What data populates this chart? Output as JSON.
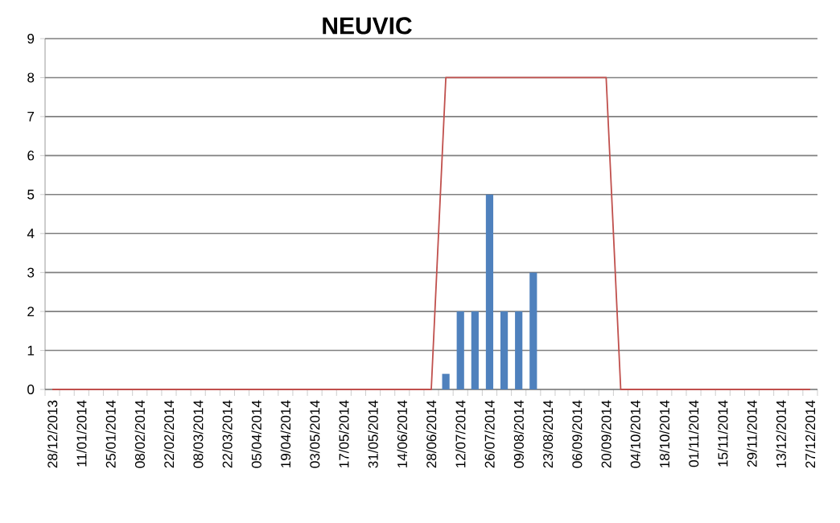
{
  "chart_data": {
    "type": "bar",
    "title": "NEUVIC",
    "categories": [
      "28/12/2013",
      null,
      "11/01/2014",
      null,
      "25/01/2014",
      null,
      "08/02/2014",
      null,
      "22/02/2014",
      null,
      "08/03/2014",
      null,
      "22/03/2014",
      null,
      "05/04/2014",
      null,
      "19/04/2014",
      null,
      "03/05/2014",
      null,
      "17/05/2014",
      null,
      "31/05/2014",
      null,
      "14/06/2014",
      null,
      "28/06/2014",
      null,
      "12/07/2014",
      null,
      "26/07/2014",
      null,
      "09/08/2014",
      null,
      "23/08/2014",
      null,
      "06/09/2014",
      null,
      "20/09/2014",
      null,
      "04/10/2014",
      null,
      "18/10/2014",
      null,
      "01/11/2014",
      null,
      "15/11/2014",
      null,
      "29/11/2014",
      null,
      "13/12/2014",
      null,
      "27/12/2014"
    ],
    "series": [
      {
        "color": "#4f81bd",
        "values": [
          0,
          0,
          0,
          0,
          0,
          0,
          0,
          0,
          0,
          0,
          0,
          0,
          0,
          0,
          0,
          0,
          0,
          0,
          0,
          0,
          0,
          0,
          0,
          0,
          0,
          0,
          0,
          0.4,
          2,
          2,
          5,
          2,
          2,
          3,
          0,
          0,
          0,
          0,
          0,
          0,
          0,
          0,
          0,
          0,
          0,
          0,
          0,
          0,
          0,
          0,
          0,
          0,
          0
        ]
      },
      {
        "type": "line",
        "color": "#c0504d",
        "values": [
          0,
          0,
          0,
          0,
          0,
          0,
          0,
          0,
          0,
          0,
          0,
          0,
          0,
          0,
          0,
          0,
          0,
          0,
          0,
          0,
          0,
          0,
          0,
          0,
          0,
          0,
          0,
          8,
          8,
          8,
          8,
          8,
          8,
          8,
          8,
          8,
          8,
          8,
          8,
          0,
          0,
          0,
          0,
          0,
          0,
          0,
          0,
          0,
          0,
          0,
          0,
          0,
          0
        ]
      }
    ],
    "ylim": [
      0,
      9
    ],
    "yticks": [
      0,
      1,
      2,
      3,
      4,
      5,
      6,
      7,
      8,
      9
    ],
    "grid": "y"
  }
}
